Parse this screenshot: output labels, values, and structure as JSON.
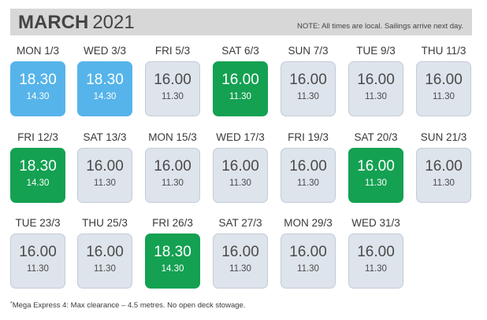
{
  "header": {
    "month": "MARCH",
    "year": "2021",
    "note": "NOTE: All times are local. Sailings arrive next day."
  },
  "colors": {
    "blue": "#56b4ea",
    "green": "#14a152",
    "grey": "#dee4ec",
    "header_bar": "#d7d7d7"
  },
  "sailings": [
    {
      "day": "MON 1/3",
      "time1": "18.30",
      "time2": "14.30",
      "color": "blue"
    },
    {
      "day": "WED 3/3",
      "time1": "18.30",
      "time2": "14.30",
      "color": "blue"
    },
    {
      "day": "FRI 5/3",
      "time1": "16.00",
      "time2": "11.30",
      "color": "grey"
    },
    {
      "day": "SAT 6/3",
      "time1": "16.00",
      "time2": "11.30",
      "color": "green"
    },
    {
      "day": "SUN 7/3",
      "time1": "16.00",
      "time2": "11.30",
      "color": "grey"
    },
    {
      "day": "TUE 9/3",
      "time1": "16.00",
      "time2": "11.30",
      "color": "grey"
    },
    {
      "day": "THU 11/3",
      "time1": "16.00",
      "time2": "11.30",
      "color": "grey"
    },
    {
      "day": "FRI 12/3",
      "time1": "18.30",
      "time2": "14.30",
      "color": "green"
    },
    {
      "day": "SAT 13/3",
      "time1": "16.00",
      "time2": "11.30",
      "color": "grey"
    },
    {
      "day": "MON 15/3",
      "time1": "16.00",
      "time2": "11.30",
      "color": "grey"
    },
    {
      "day": "WED 17/3",
      "time1": "16.00",
      "time2": "11.30",
      "color": "grey"
    },
    {
      "day": "FRI 19/3",
      "time1": "16.00",
      "time2": "11.30",
      "color": "grey"
    },
    {
      "day": "SAT 20/3",
      "time1": "16.00",
      "time2": "11.30",
      "color": "green"
    },
    {
      "day": "SUN 21/3",
      "time1": "16.00",
      "time2": "11.30",
      "color": "grey"
    },
    {
      "day": "TUE 23/3",
      "time1": "16.00",
      "time2": "11.30",
      "color": "grey"
    },
    {
      "day": "THU 25/3",
      "time1": "16.00",
      "time2": "11.30",
      "color": "grey"
    },
    {
      "day": "FRI 26/3",
      "time1": "18.30",
      "time2": "14.30",
      "color": "green"
    },
    {
      "day": "SAT 27/3",
      "time1": "16.00",
      "time2": "11.30",
      "color": "grey"
    },
    {
      "day": "MON 29/3",
      "time1": "16.00",
      "time2": "11.30",
      "color": "grey"
    },
    {
      "day": "WED 31/3",
      "time1": "16.00",
      "time2": "11.30",
      "color": "grey"
    }
  ],
  "footnote": {
    "marker": "*",
    "text": "Mega Express 4: Max clearance – 4.5 metres. No open deck stowage."
  }
}
